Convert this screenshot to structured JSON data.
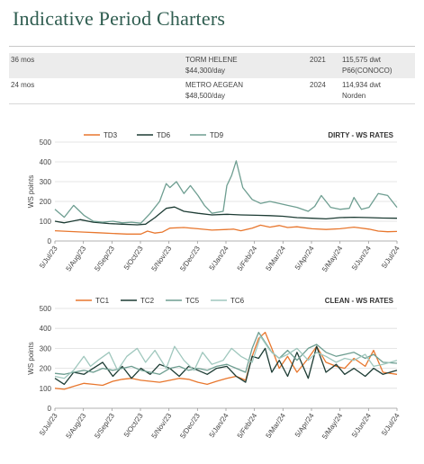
{
  "page": {
    "title": "Indicative Period Charters"
  },
  "charters": {
    "rows": [
      {
        "period": "36 mos",
        "vessel": "TORM HELENE",
        "rate": "$44,300/day",
        "year": "2021",
        "size": "115,575 dwt",
        "charterer": "P66(CONOCO)"
      },
      {
        "period": "24 mos",
        "vessel": "METRO AEGEAN",
        "rate": "$48,500/day",
        "year": "2024",
        "size": "114,934 dwt",
        "charterer": "Norden"
      }
    ]
  },
  "chart_data": [
    {
      "type": "line",
      "title": "DIRTY - WS RATES",
      "ylabel": "WS points",
      "ylim": [
        0,
        500
      ],
      "yticks": [
        "0",
        "100",
        "200",
        "300",
        "400",
        "500"
      ],
      "grid": "horizontal",
      "legend_position": "top",
      "x_range": [
        "2023-07-05",
        "2024-07-05"
      ],
      "x_ticks": [
        "5/Jul/23",
        "5/Aug/23",
        "5/Sep/23",
        "5/Oct/23",
        "5/Nov/23",
        "5/Dec/23",
        "5/Jan/24",
        "5/Feb/24",
        "5/Mar/24",
        "5/Apr/24",
        "5/May/24",
        "5/Jun/24",
        "5/Jul/24"
      ],
      "series": [
        {
          "name": "TD3",
          "color": "#e8772e",
          "x": [
            "2023-07-05",
            "2023-07-20",
            "2023-08-05",
            "2023-08-20",
            "2023-09-05",
            "2023-09-20",
            "2023-10-05",
            "2023-10-12",
            "2023-10-20",
            "2023-10-28",
            "2023-11-05",
            "2023-11-20",
            "2023-12-05",
            "2023-12-20",
            "2024-01-05",
            "2024-01-12",
            "2024-01-20",
            "2024-02-01",
            "2024-02-10",
            "2024-02-20",
            "2024-03-01",
            "2024-03-10",
            "2024-03-20",
            "2024-04-05",
            "2024-04-20",
            "2024-05-05",
            "2024-05-20",
            "2024-06-05",
            "2024-06-15",
            "2024-06-25",
            "2024-07-05"
          ],
          "y": [
            52,
            48,
            45,
            42,
            38,
            35,
            35,
            50,
            40,
            45,
            65,
            68,
            62,
            55,
            58,
            60,
            52,
            65,
            80,
            70,
            78,
            68,
            72,
            62,
            58,
            62,
            70,
            60,
            50,
            47,
            48
          ]
        },
        {
          "name": "TD6",
          "color": "#1d3c34",
          "x": [
            "2023-07-05",
            "2023-07-15",
            "2023-08-01",
            "2023-08-15",
            "2023-09-01",
            "2023-09-15",
            "2023-10-01",
            "2023-10-10",
            "2023-10-20",
            "2023-11-01",
            "2023-11-10",
            "2023-11-20",
            "2023-12-05",
            "2023-12-20",
            "2024-01-05",
            "2024-01-20",
            "2024-02-05",
            "2024-02-20",
            "2024-03-05",
            "2024-03-20",
            "2024-04-05",
            "2024-04-20",
            "2024-05-05",
            "2024-05-20",
            "2024-06-05",
            "2024-06-20",
            "2024-07-05"
          ],
          "y": [
            100,
            92,
            108,
            95,
            88,
            85,
            82,
            85,
            118,
            165,
            172,
            150,
            140,
            132,
            135,
            132,
            130,
            128,
            125,
            118,
            115,
            112,
            118,
            120,
            118,
            116,
            115
          ]
        },
        {
          "name": "TD9",
          "color": "#6e9e91",
          "x": [
            "2023-07-05",
            "2023-07-15",
            "2023-07-25",
            "2023-08-05",
            "2023-08-15",
            "2023-08-25",
            "2023-09-05",
            "2023-09-15",
            "2023-09-25",
            "2023-10-05",
            "2023-10-15",
            "2023-10-25",
            "2023-11-01",
            "2023-11-05",
            "2023-11-12",
            "2023-11-20",
            "2023-11-27",
            "2023-12-05",
            "2023-12-12",
            "2023-12-20",
            "2024-01-01",
            "2024-01-05",
            "2024-01-10",
            "2024-01-15",
            "2024-01-22",
            "2024-02-01",
            "2024-02-10",
            "2024-02-20",
            "2024-03-01",
            "2024-03-10",
            "2024-03-20",
            "2024-04-01",
            "2024-04-08",
            "2024-04-15",
            "2024-04-25",
            "2024-05-05",
            "2024-05-15",
            "2024-05-20",
            "2024-05-28",
            "2024-06-05",
            "2024-06-15",
            "2024-06-25",
            "2024-07-05"
          ],
          "y": [
            160,
            120,
            180,
            130,
            100,
            95,
            100,
            92,
            95,
            90,
            140,
            200,
            290,
            270,
            300,
            240,
            280,
            230,
            180,
            140,
            150,
            280,
            330,
            405,
            270,
            210,
            190,
            200,
            190,
            180,
            170,
            150,
            175,
            230,
            170,
            160,
            165,
            220,
            160,
            170,
            240,
            230,
            170
          ]
        }
      ]
    },
    {
      "type": "line",
      "title": "CLEAN - WS RATES",
      "ylabel": "WS points",
      "ylim": [
        0,
        500
      ],
      "yticks": [
        "0",
        "100",
        "200",
        "300",
        "400",
        "500"
      ],
      "grid": "horizontal",
      "legend_position": "top",
      "x_range": [
        "2023-07-05",
        "2024-07-05"
      ],
      "x_ticks": [
        "5/Jul/23",
        "5/Aug/23",
        "5/Sep/23",
        "5/Oct/23",
        "5/Nov/23",
        "5/Dec/23",
        "5/Jan/24",
        "5/Feb/24",
        "5/Mar/24",
        "5/Apr/24",
        "5/May/24",
        "5/Jun/24",
        "5/Jul/24"
      ],
      "series": [
        {
          "name": "TC1",
          "color": "#e8772e",
          "x": [
            "2023-07-05",
            "2023-07-15",
            "2023-07-25",
            "2023-08-05",
            "2023-08-15",
            "2023-08-25",
            "2023-09-05",
            "2023-09-15",
            "2023-09-25",
            "2023-10-05",
            "2023-10-15",
            "2023-10-25",
            "2023-11-05",
            "2023-11-15",
            "2023-11-25",
            "2023-12-05",
            "2023-12-15",
            "2023-12-25",
            "2024-01-05",
            "2024-01-15",
            "2024-01-25",
            "2024-02-01",
            "2024-02-08",
            "2024-02-15",
            "2024-02-22",
            "2024-03-01",
            "2024-03-10",
            "2024-03-20",
            "2024-04-01",
            "2024-04-10",
            "2024-04-20",
            "2024-05-01",
            "2024-05-10",
            "2024-05-20",
            "2024-06-01",
            "2024-06-10",
            "2024-06-20",
            "2024-07-05"
          ],
          "y": [
            100,
            95,
            110,
            125,
            120,
            115,
            135,
            145,
            150,
            140,
            135,
            130,
            140,
            150,
            145,
            130,
            120,
            135,
            150,
            160,
            140,
            260,
            350,
            380,
            300,
            200,
            260,
            180,
            250,
            310,
            230,
            210,
            200,
            250,
            210,
            290,
            180,
            170
          ]
        },
        {
          "name": "TC2",
          "color": "#1d3c34",
          "x": [
            "2023-07-05",
            "2023-07-15",
            "2023-07-25",
            "2023-08-05",
            "2023-08-15",
            "2023-08-25",
            "2023-09-05",
            "2023-09-15",
            "2023-09-25",
            "2023-10-05",
            "2023-10-15",
            "2023-10-25",
            "2023-11-05",
            "2023-11-15",
            "2023-11-25",
            "2023-12-05",
            "2023-12-15",
            "2023-12-25",
            "2024-01-05",
            "2024-01-15",
            "2024-01-25",
            "2024-02-01",
            "2024-02-08",
            "2024-02-15",
            "2024-02-22",
            "2024-03-01",
            "2024-03-10",
            "2024-03-20",
            "2024-04-01",
            "2024-04-10",
            "2024-04-20",
            "2024-05-01",
            "2024-05-10",
            "2024-05-20",
            "2024-06-01",
            "2024-06-10",
            "2024-06-20",
            "2024-07-05"
          ],
          "y": [
            150,
            120,
            180,
            170,
            200,
            230,
            160,
            210,
            150,
            200,
            170,
            220,
            200,
            160,
            210,
            190,
            170,
            200,
            210,
            160,
            130,
            260,
            250,
            300,
            180,
            240,
            160,
            280,
            150,
            310,
            180,
            220,
            170,
            200,
            160,
            200,
            170,
            190
          ]
        },
        {
          "name": "TC5",
          "color": "#6e9e91",
          "x": [
            "2023-07-05",
            "2023-07-15",
            "2023-07-25",
            "2023-08-05",
            "2023-08-15",
            "2023-08-25",
            "2023-09-05",
            "2023-09-15",
            "2023-09-25",
            "2023-10-05",
            "2023-10-15",
            "2023-10-25",
            "2023-11-05",
            "2023-11-15",
            "2023-11-25",
            "2023-12-05",
            "2023-12-15",
            "2023-12-25",
            "2024-01-05",
            "2024-01-15",
            "2024-01-25",
            "2024-02-01",
            "2024-02-08",
            "2024-02-15",
            "2024-02-22",
            "2024-03-01",
            "2024-03-10",
            "2024-03-20",
            "2024-04-01",
            "2024-04-10",
            "2024-04-20",
            "2024-05-01",
            "2024-05-10",
            "2024-05-20",
            "2024-06-01",
            "2024-06-10",
            "2024-06-20",
            "2024-07-05"
          ],
          "y": [
            175,
            170,
            180,
            190,
            180,
            200,
            190,
            200,
            210,
            190,
            180,
            170,
            200,
            210,
            190,
            200,
            190,
            210,
            220,
            200,
            180,
            300,
            380,
            330,
            280,
            250,
            290,
            240,
            300,
            320,
            280,
            260,
            270,
            280,
            250,
            270,
            230,
            225
          ]
        },
        {
          "name": "TC6",
          "color": "#9fc7bd",
          "x": [
            "2023-07-05",
            "2023-07-15",
            "2023-07-25",
            "2023-08-05",
            "2023-08-12",
            "2023-08-20",
            "2023-09-01",
            "2023-09-10",
            "2023-09-20",
            "2023-10-01",
            "2023-10-10",
            "2023-10-20",
            "2023-11-01",
            "2023-11-10",
            "2023-11-20",
            "2023-12-01",
            "2023-12-10",
            "2023-12-20",
            "2024-01-01",
            "2024-01-10",
            "2024-01-20",
            "2024-02-01",
            "2024-02-10",
            "2024-02-20",
            "2024-03-01",
            "2024-03-10",
            "2024-03-20",
            "2024-04-01",
            "2024-04-10",
            "2024-04-20",
            "2024-05-01",
            "2024-05-10",
            "2024-05-20",
            "2024-06-01",
            "2024-06-10",
            "2024-06-20",
            "2024-07-05"
          ],
          "y": [
            160,
            150,
            190,
            260,
            210,
            240,
            280,
            190,
            260,
            300,
            230,
            290,
            200,
            310,
            240,
            190,
            280,
            220,
            240,
            300,
            260,
            230,
            360,
            290,
            250,
            270,
            300,
            240,
            280,
            260,
            230,
            250,
            240,
            270,
            210,
            220,
            240
          ]
        }
      ]
    }
  ]
}
